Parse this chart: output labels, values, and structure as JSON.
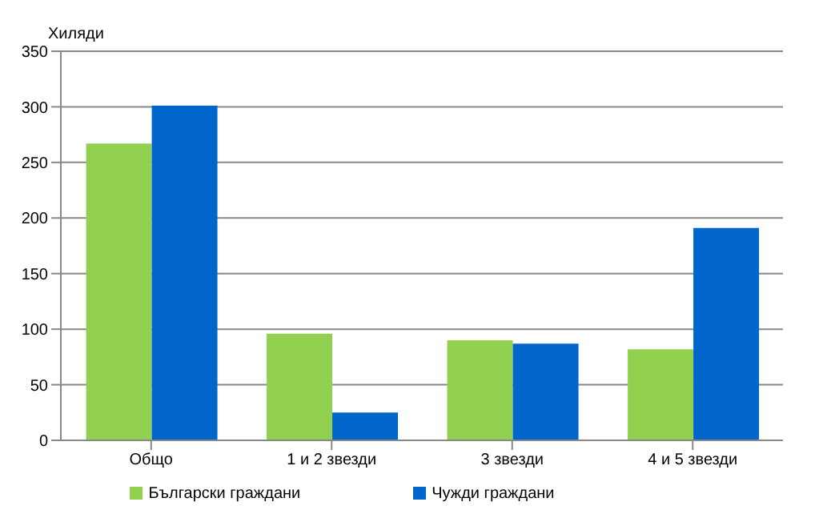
{
  "chart_data": {
    "type": "bar",
    "ylabel": "Хиляди",
    "categories": [
      "Общо",
      "1 и 2 звезди",
      "3 звезди",
      "4 и 5 звезди"
    ],
    "series": [
      {
        "name": "Български граждани",
        "color": "#92d050",
        "values": [
          267,
          96,
          90,
          82
        ]
      },
      {
        "name": "Чужди граждани",
        "color": "#0066cc",
        "values": [
          301,
          25,
          87,
          191
        ]
      }
    ],
    "ylim": [
      0,
      350
    ],
    "yticks": [
      0,
      50,
      100,
      150,
      200,
      250,
      300,
      350
    ],
    "grid": "y",
    "legend": "bottom"
  }
}
